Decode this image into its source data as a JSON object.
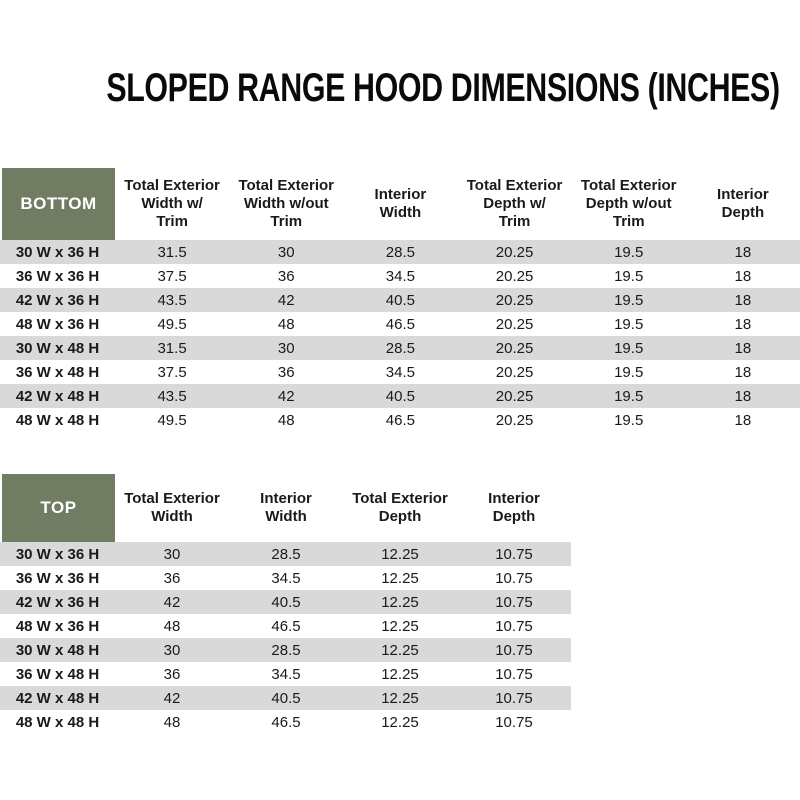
{
  "page_title": "SLOPED RANGE HOOD DIMENSIONS (INCHES)",
  "colors": {
    "header_cell_green": "#717D63",
    "stripe_gray": "#D9D9D9",
    "corner_text": "#FFFFFF",
    "body_text": "#1A1A1A"
  },
  "bottom_table": {
    "corner_label": "BOTTOM",
    "column_headers": [
      "Total Exterior\nWidth w/\nTrim",
      "Total Exterior\nWidth w/out\nTrim",
      "Interior\nWidth",
      "Total Exterior\nDepth w/\nTrim",
      "Total Exterior\nDepth w/out\nTrim",
      "Interior\nDepth"
    ],
    "rows": [
      {
        "label": "30 W x 36 H",
        "values": [
          "31.5",
          "30",
          "28.5",
          "20.25",
          "19.5",
          "18"
        ]
      },
      {
        "label": "36 W x 36 H",
        "values": [
          "37.5",
          "36",
          "34.5",
          "20.25",
          "19.5",
          "18"
        ]
      },
      {
        "label": "42 W x 36 H",
        "values": [
          "43.5",
          "42",
          "40.5",
          "20.25",
          "19.5",
          "18"
        ]
      },
      {
        "label": "48 W x 36 H",
        "values": [
          "49.5",
          "48",
          "46.5",
          "20.25",
          "19.5",
          "18"
        ]
      },
      {
        "label": "30 W x 48 H",
        "values": [
          "31.5",
          "30",
          "28.5",
          "20.25",
          "19.5",
          "18"
        ]
      },
      {
        "label": "36 W x 48 H",
        "values": [
          "37.5",
          "36",
          "34.5",
          "20.25",
          "19.5",
          "18"
        ]
      },
      {
        "label": "42 W x 48 H",
        "values": [
          "43.5",
          "42",
          "40.5",
          "20.25",
          "19.5",
          "18"
        ]
      },
      {
        "label": "48 W x 48 H",
        "values": [
          "49.5",
          "48",
          "46.5",
          "20.25",
          "19.5",
          "18"
        ]
      }
    ]
  },
  "top_table": {
    "corner_label": "TOP",
    "column_headers": [
      "Total Exterior\nWidth",
      "Interior\nWidth",
      "Total Exterior\nDepth",
      "Interior\nDepth"
    ],
    "rows": [
      {
        "label": "30 W x 36 H",
        "values": [
          "30",
          "28.5",
          "12.25",
          "10.75"
        ]
      },
      {
        "label": "36 W x 36 H",
        "values": [
          "36",
          "34.5",
          "12.25",
          "10.75"
        ]
      },
      {
        "label": "42 W x 36 H",
        "values": [
          "42",
          "40.5",
          "12.25",
          "10.75"
        ]
      },
      {
        "label": "48 W x 36 H",
        "values": [
          "48",
          "46.5",
          "12.25",
          "10.75"
        ]
      },
      {
        "label": "30 W x 48 H",
        "values": [
          "30",
          "28.5",
          "12.25",
          "10.75"
        ]
      },
      {
        "label": "36 W x 48 H",
        "values": [
          "36",
          "34.5",
          "12.25",
          "10.75"
        ]
      },
      {
        "label": "42 W x 48 H",
        "values": [
          "42",
          "40.5",
          "12.25",
          "10.75"
        ]
      },
      {
        "label": "48 W x 48 H",
        "values": [
          "48",
          "46.5",
          "12.25",
          "10.75"
        ]
      }
    ]
  }
}
